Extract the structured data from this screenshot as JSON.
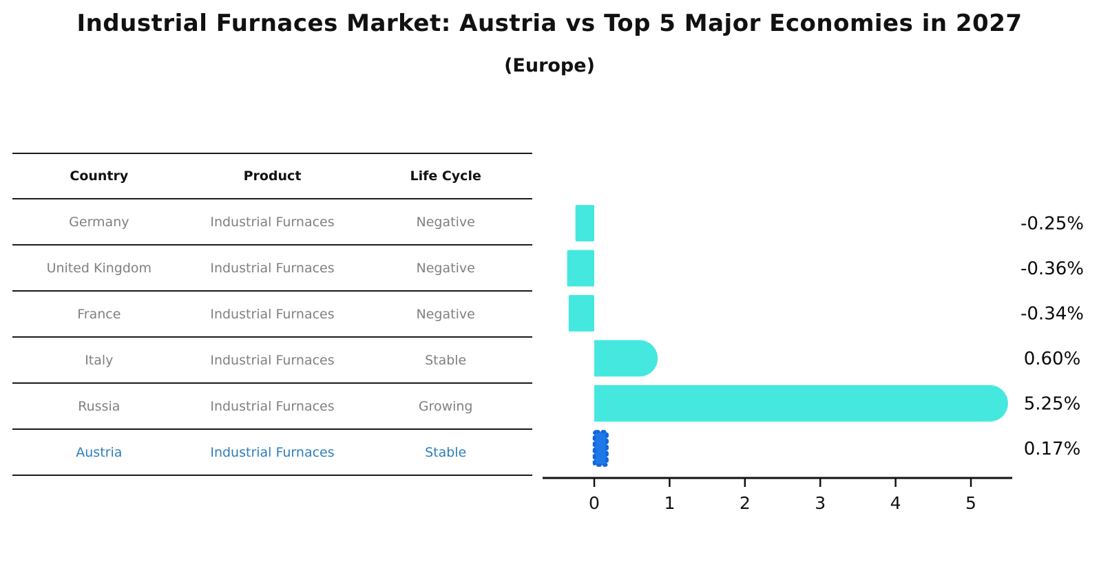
{
  "title": "Industrial Furnaces Market: Austria vs Top 5 Major Economies in 2027",
  "subtitle": "(Europe)",
  "table": {
    "headers": [
      "Country",
      "Product",
      "Life Cycle"
    ],
    "rows": [
      {
        "country": "Germany",
        "product": "Industrial Furnaces",
        "life_cycle": "Negative",
        "highlight": false
      },
      {
        "country": "United Kingdom",
        "product": "Industrial Furnaces",
        "life_cycle": "Negative",
        "highlight": false
      },
      {
        "country": "France",
        "product": "Industrial Furnaces",
        "life_cycle": "Negative",
        "highlight": false
      },
      {
        "country": "Italy",
        "product": "Industrial Furnaces",
        "life_cycle": "Stable",
        "highlight": false
      },
      {
        "country": "Russia",
        "product": "Industrial Furnaces",
        "life_cycle": "Growing",
        "highlight": false
      },
      {
        "country": "Austria",
        "product": "Industrial Furnaces",
        "life_cycle": "Stable",
        "highlight": true
      }
    ]
  },
  "chart_data": {
    "type": "bar",
    "orientation": "horizontal",
    "categories": [
      "Germany",
      "United Kingdom",
      "France",
      "Italy",
      "Russia",
      "Austria"
    ],
    "values": [
      -0.25,
      -0.36,
      -0.34,
      0.6,
      5.25,
      0.17
    ],
    "value_labels": [
      "-0.25%",
      "-0.36%",
      "-0.34%",
      "0.60%",
      "5.25%",
      "0.17%"
    ],
    "xticks": [
      "0",
      "1",
      "2",
      "3",
      "4",
      "5"
    ],
    "xtick_values": [
      0,
      1,
      2,
      3,
      4,
      5
    ],
    "xlim": [
      -0.69,
      5.55
    ],
    "highlight_index": 5,
    "grid": false,
    "legend": "none",
    "colors": {
      "bar_default": "#45E8DF",
      "bar_highlight": "#1E78E8",
      "bar_highlight_edge": "#1565D8",
      "axis": "#111111",
      "table_text": "#808080",
      "highlight_text": "#2E7EBC"
    }
  }
}
